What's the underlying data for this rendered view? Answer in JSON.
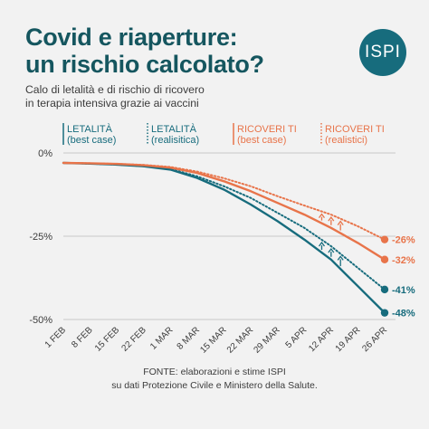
{
  "header": {
    "title_line1": "Covid e riaperture:",
    "title_line2": "un rischio calcolato?",
    "subtitle_line1": "Calo di letalità e di rischio di ricovero",
    "subtitle_line2": "in terapia intensiva grazie ai vaccini",
    "logo_text": "ISPI"
  },
  "source": {
    "line1": "FONTE: elaborazioni e stime ISPI",
    "line2": "su dati Protezione Civile e Ministero della Salute."
  },
  "chart_data": {
    "type": "line",
    "x": [
      "1 FEB",
      "8 FEB",
      "15 FEB",
      "22 FEB",
      "1 MAR",
      "8 MAR",
      "15 MAR",
      "22 MAR",
      "29 MAR",
      "5 APR",
      "12 APR",
      "19 APR",
      "26 APR"
    ],
    "yticks": [
      "0%",
      "-25%",
      "-50%"
    ],
    "ylim": [
      -50,
      0
    ],
    "legend_position": "top",
    "colors": {
      "letalita": "#176c7d",
      "ricoveri": "#e8744a",
      "text_letalita": "#15565f",
      "text_ricoveri": "#e8744a"
    },
    "series": [
      {
        "name_line1": "LETALITÀ",
        "name_line2": "(best case)",
        "style": "solid",
        "color": "#176c7d",
        "values": [
          -3.0,
          -3.2,
          -3.5,
          -4.0,
          -5.0,
          -7.5,
          -11.0,
          -15.5,
          -20.5,
          -26.0,
          -32.0,
          -40.0,
          -48.0
        ],
        "end_label": "-48%"
      },
      {
        "name_line1": "LETALITÀ",
        "name_line2": "(realisitica)",
        "style": "dotted",
        "color": "#176c7d",
        "values": [
          -3.0,
          -3.2,
          -3.5,
          -4.0,
          -4.8,
          -7.0,
          -10.0,
          -13.5,
          -18.0,
          -22.5,
          -28.0,
          -34.5,
          -41.0
        ],
        "end_label": "-41%"
      },
      {
        "name_line1": "RICOVERI TI",
        "name_line2": "(best case)",
        "style": "solid",
        "color": "#e8744a",
        "values": [
          -3.0,
          -3.1,
          -3.3,
          -3.7,
          -4.4,
          -6.0,
          -8.5,
          -11.5,
          -15.0,
          -18.5,
          -22.5,
          -27.0,
          -32.0
        ],
        "end_label": "-32%"
      },
      {
        "name_line1": "RICOVERI TI",
        "name_line2": "(realistici)",
        "style": "dotted",
        "color": "#e8744a",
        "values": [
          -3.0,
          -3.1,
          -3.3,
          -3.6,
          -4.2,
          -5.6,
          -7.6,
          -10.0,
          -13.0,
          -15.8,
          -18.5,
          -22.0,
          -26.0
        ],
        "end_label": "-26%"
      }
    ]
  }
}
